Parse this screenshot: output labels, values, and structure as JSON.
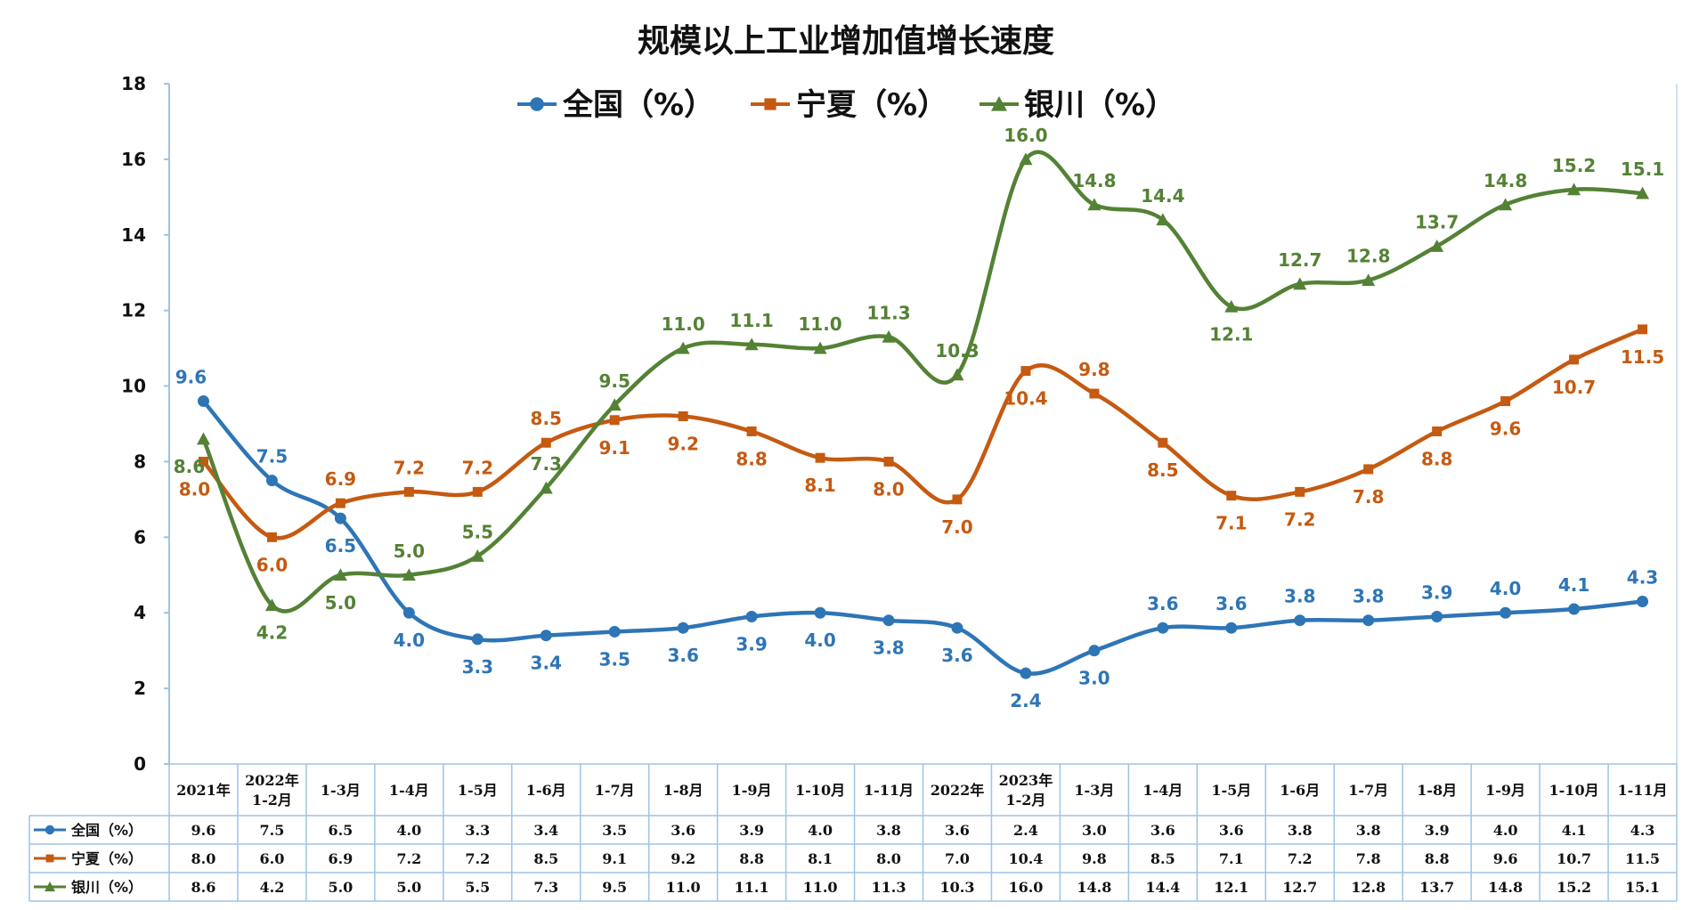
{
  "chart_data": {
    "type": "line",
    "title": "规模以上工业增加值增长速度",
    "categories": [
      "2021年",
      "2022年\n1-2月",
      "1-3月",
      "1-4月",
      "1-5月",
      "1-6月",
      "1-7月",
      "1-8月",
      "1-9月",
      "1-10月",
      "1-11月",
      "2022年",
      "2023年\n1-2月",
      "1-3月",
      "1-4月",
      "1-5月",
      "1-6月",
      "1-7月",
      "1-8月",
      "1-9月",
      "1-10月",
      "1-11月"
    ],
    "ylim": [
      0,
      18
    ],
    "yticks": [
      "0",
      "2",
      "4",
      "6",
      "8",
      "10",
      "12",
      "14",
      "16",
      "18"
    ],
    "legend_position": "top",
    "grid": false,
    "series": [
      {
        "name": "全国（%）",
        "color": "#2E75B6",
        "marker": "circle",
        "values": [
          9.6,
          7.5,
          6.5,
          4.0,
          3.3,
          3.4,
          3.5,
          3.6,
          3.9,
          4.0,
          3.8,
          3.6,
          2.4,
          3.0,
          3.6,
          3.6,
          3.8,
          3.8,
          3.9,
          4.0,
          4.1,
          4.3
        ],
        "labels": [
          "9.6",
          "7.5",
          "6.5",
          "4.0",
          "3.3",
          "3.4",
          "3.5",
          "3.6",
          "3.9",
          "4.0",
          "3.8",
          "3.6",
          "2.4",
          "3.0",
          "3.6",
          "3.6",
          "3.8",
          "3.8",
          "3.9",
          "4.0",
          "4.1",
          "4.3"
        ]
      },
      {
        "name": "宁夏（%）",
        "color": "#C55A11",
        "marker": "square",
        "values": [
          8.0,
          6.0,
          6.9,
          7.2,
          7.2,
          8.5,
          9.1,
          9.2,
          8.8,
          8.1,
          8.0,
          7.0,
          10.4,
          9.8,
          8.5,
          7.1,
          7.2,
          7.8,
          8.8,
          9.6,
          10.7,
          11.5
        ],
        "labels": [
          "8.0",
          "6.0",
          "6.9",
          "7.2",
          "7.2",
          "8.5",
          "9.1",
          "9.2",
          "8.8",
          "8.1",
          "8.0",
          "7.0",
          "10.4",
          "9.8",
          "8.5",
          "7.1",
          "7.2",
          "7.8",
          "8.8",
          "9.6",
          "10.7",
          "11.5"
        ]
      },
      {
        "name": "银川（%）",
        "color": "#548235",
        "marker": "triangle",
        "values": [
          8.6,
          4.2,
          5.0,
          5.0,
          5.5,
          7.3,
          9.5,
          11.0,
          11.1,
          11.0,
          11.3,
          10.3,
          16.0,
          14.8,
          14.4,
          12.1,
          12.7,
          12.8,
          13.7,
          14.8,
          15.2,
          15.1
        ],
        "labels": [
          "8.6",
          "4.2",
          "5.0",
          "5.0",
          "5.5",
          "7.3",
          "9.5",
          "11.0",
          "11.1",
          "11.0",
          "11.3",
          "10.3",
          "16.0",
          "14.8",
          "14.4",
          "12.1",
          "12.7",
          "12.8",
          "13.7",
          "14.8",
          "15.2",
          "15.1"
        ]
      }
    ],
    "table": {
      "row_labels": [
        "全国（%）",
        "宁夏（%）",
        "银川（%）"
      ]
    }
  }
}
